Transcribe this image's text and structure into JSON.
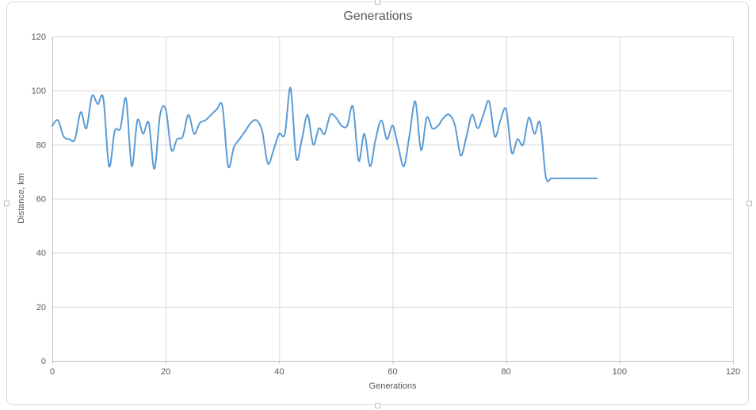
{
  "chart_data": {
    "type": "line",
    "title": "Generations",
    "xlabel": "Generations",
    "ylabel": "Distance, km",
    "xlim": [
      0,
      120
    ],
    "ylim": [
      0,
      120
    ],
    "x_ticks": [
      0,
      20,
      40,
      60,
      80,
      100,
      120
    ],
    "y_ticks": [
      0,
      20,
      40,
      60,
      80,
      100,
      120
    ],
    "grid": true,
    "legend": false,
    "smoothed": true,
    "x_start": 0,
    "x_step": 1,
    "colors": {
      "line": "#5B9BD5",
      "grid": "#D9D9D9",
      "axis": "#BFBFBF",
      "text": "#595959",
      "border": "#D9D9D9"
    },
    "series": [
      {
        "name": "Distance, km",
        "values": [
          87,
          89,
          83,
          82,
          82,
          92,
          86,
          98,
          95,
          97,
          72,
          85,
          86,
          97,
          72,
          89,
          84,
          88,
          71,
          91,
          93,
          78,
          82,
          83,
          91,
          84,
          88,
          89,
          91,
          93,
          94,
          72,
          79,
          82,
          85,
          88,
          89,
          85,
          73,
          78,
          84,
          84,
          101,
          75,
          82,
          91,
          80,
          86,
          84,
          91,
          90,
          87,
          87,
          94,
          74,
          84,
          72,
          82,
          89,
          82,
          87,
          79,
          72,
          84,
          96,
          78,
          90,
          86,
          87,
          90,
          91,
          87,
          76,
          83,
          91,
          86,
          91,
          96,
          83,
          89,
          93,
          77,
          82,
          80,
          90,
          84,
          88,
          68,
          67.5,
          67.5,
          67.5,
          67.5,
          67.5,
          67.5,
          67.5,
          67.5,
          67.5
        ]
      }
    ]
  }
}
